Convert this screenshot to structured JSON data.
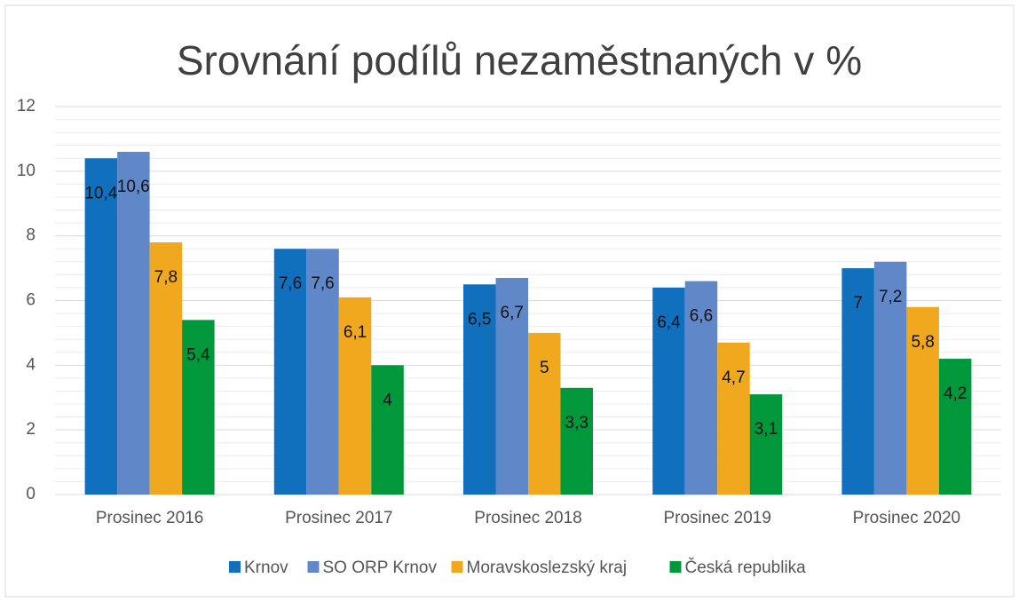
{
  "chart_data": {
    "type": "bar",
    "title": "Srovnání podílů nezaměstnaných v %",
    "categories": [
      "Prosinec 2016",
      "Prosinec 2017",
      "Prosinec 2018",
      "Prosinec 2019",
      "Prosinec 2020"
    ],
    "series": [
      {
        "name": "Krnov",
        "color": "#1170be",
        "values": [
          10.4,
          7.6,
          6.5,
          6.4,
          7
        ],
        "value_labels": [
          "10,4",
          "7,6",
          "6,5",
          "6,4",
          "7"
        ]
      },
      {
        "name": "SO ORP Krnov",
        "color": "#6088c8",
        "values": [
          10.6,
          7.6,
          6.7,
          6.6,
          7.2
        ],
        "value_labels": [
          "10,6",
          "7,6",
          "6,7",
          "6,6",
          "7,2"
        ]
      },
      {
        "name": "Moravskoslezský kraj",
        "color": "#f0a81e",
        "values": [
          7.8,
          6.1,
          5,
          4.7,
          5.8
        ],
        "value_labels": [
          "7,8",
          "6,1",
          "5",
          "4,7",
          "5,8"
        ]
      },
      {
        "name": "Česká republika",
        "color": "#00983a",
        "values": [
          5.4,
          4,
          3.3,
          3.1,
          4.2
        ],
        "value_labels": [
          "5,4",
          "4",
          "3,3",
          "3,1",
          "4,2"
        ]
      }
    ],
    "ylim": [
      0,
      12
    ],
    "yticks": [
      0,
      2,
      4,
      6,
      8,
      10,
      12
    ],
    "grid": true,
    "minor_grid": true,
    "legend": "bottom"
  }
}
